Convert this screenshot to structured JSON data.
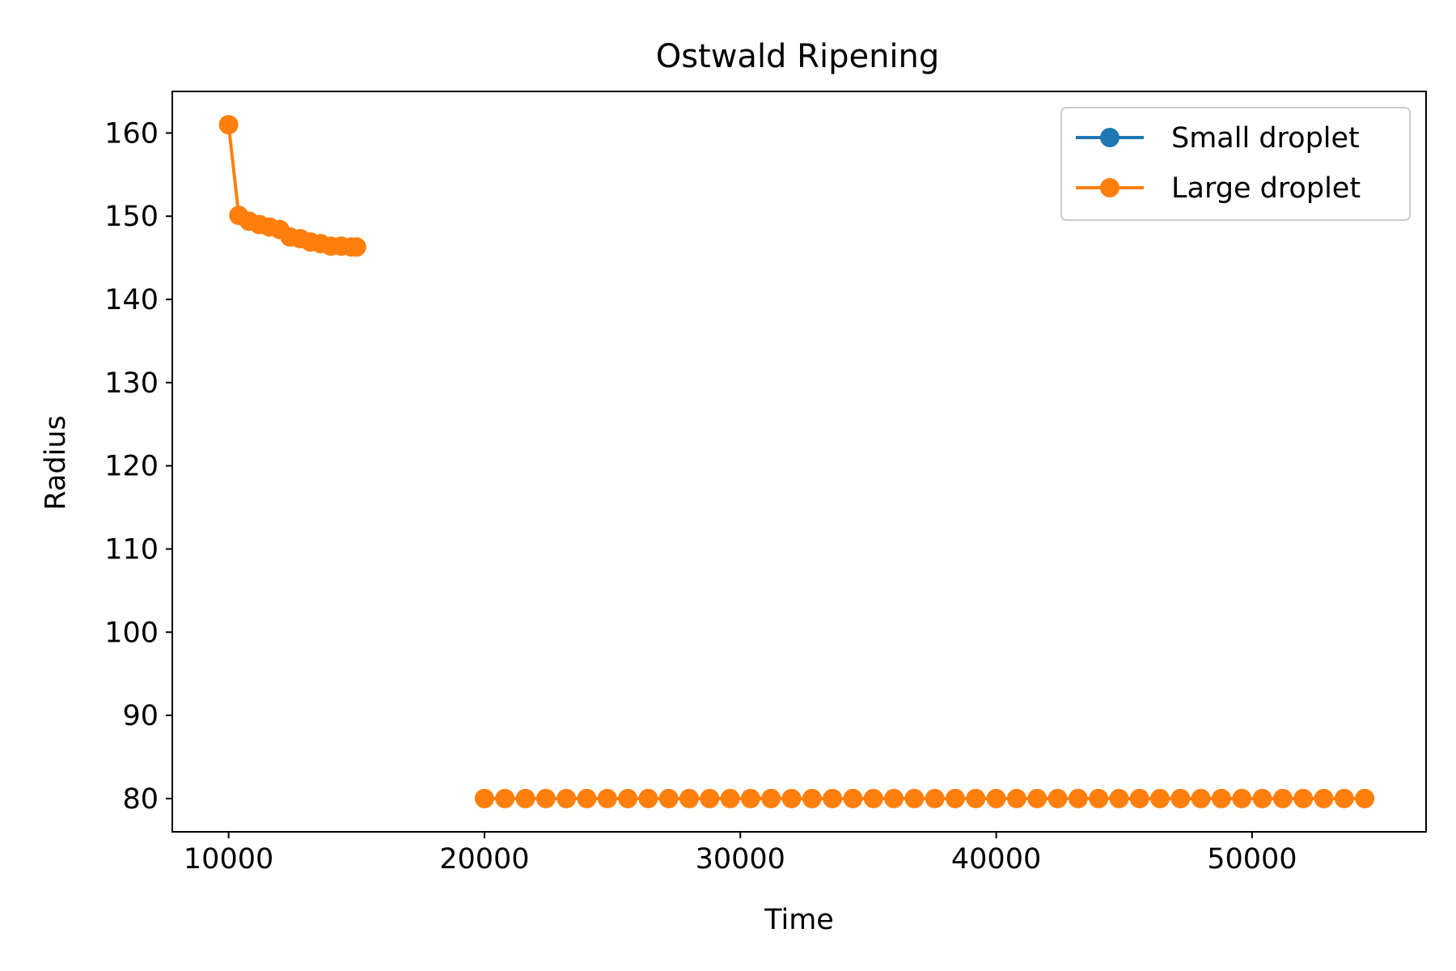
{
  "chart_data": {
    "type": "line",
    "title": "Ostwald Ripening",
    "xlabel": "Time",
    "ylabel": "Radius",
    "xlim": [
      7800,
      56800
    ],
    "ylim": [
      76,
      165
    ],
    "x_ticks": [
      10000,
      20000,
      30000,
      40000,
      50000
    ],
    "y_ticks": [
      80,
      90,
      100,
      110,
      120,
      130,
      140,
      150,
      160
    ],
    "grid": false,
    "legend_position": "top-right",
    "series": [
      {
        "name": "Small droplet",
        "color": "#1f77b4",
        "segments": []
      },
      {
        "name": "Large droplet",
        "color": "#ff7f0e",
        "segments": [
          {
            "x": [
              10000,
              10400,
              10800,
              11200,
              11600,
              12000,
              12400,
              12800,
              13200,
              13600,
              14000,
              14400,
              14800,
              15000
            ],
            "y": [
              161,
              150.1,
              149.4,
              149.0,
              148.7,
              148.4,
              147.5,
              147.3,
              146.9,
              146.7,
              146.4,
              146.4,
              146.3,
              146.3
            ]
          },
          {
            "x": [
              20000,
              20800,
              21600,
              22400,
              23200,
              24000,
              24800,
              25600,
              26400,
              27200,
              28000,
              28800,
              29600,
              30400,
              31200,
              32000,
              32800,
              33600,
              34400,
              35200,
              36000,
              36800,
              37600,
              38400,
              39200,
              40000,
              40800,
              41600,
              42400,
              43200,
              44000,
              44800,
              45600,
              46400,
              47200,
              48000,
              48800,
              49600,
              50400,
              51200,
              52000,
              52800,
              53600,
              54400
            ],
            "y": [
              80,
              80,
              80,
              80,
              80,
              80,
              80,
              80,
              80,
              80,
              80,
              80,
              80,
              80,
              80,
              80,
              80,
              80,
              80,
              80,
              80,
              80,
              80,
              80,
              80,
              80,
              80,
              80,
              80,
              80,
              80,
              80,
              80,
              80,
              80,
              80,
              80,
              80,
              80,
              80,
              80,
              80,
              80,
              80
            ]
          }
        ]
      }
    ]
  }
}
